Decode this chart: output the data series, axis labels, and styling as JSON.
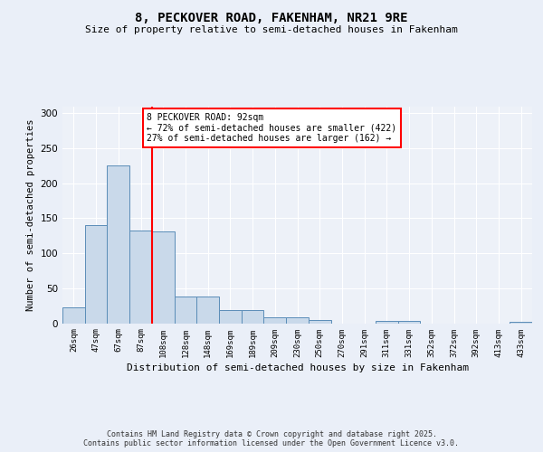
{
  "title1": "8, PECKOVER ROAD, FAKENHAM, NR21 9RE",
  "title2": "Size of property relative to semi-detached houses in Fakenham",
  "xlabel": "Distribution of semi-detached houses by size in Fakenham",
  "ylabel": "Number of semi-detached properties",
  "bar_labels": [
    "26sqm",
    "47sqm",
    "67sqm",
    "87sqm",
    "108sqm",
    "128sqm",
    "148sqm",
    "169sqm",
    "189sqm",
    "209sqm",
    "230sqm",
    "250sqm",
    "270sqm",
    "291sqm",
    "311sqm",
    "331sqm",
    "352sqm",
    "372sqm",
    "392sqm",
    "413sqm",
    "433sqm"
  ],
  "bar_values": [
    22,
    140,
    225,
    133,
    131,
    38,
    38,
    19,
    19,
    8,
    8,
    4,
    0,
    0,
    3,
    3,
    0,
    0,
    0,
    0,
    2
  ],
  "bar_color": "#c9d9ea",
  "bar_edge_color": "#5b8db8",
  "vline_x_index": 3,
  "vline_color": "red",
  "annotation_title": "8 PECKOVER ROAD: 92sqm",
  "annotation_line1": "← 72% of semi-detached houses are smaller (422)",
  "annotation_line2": "27% of semi-detached houses are larger (162) →",
  "annotation_box_color": "white",
  "annotation_box_edge": "red",
  "ylim": [
    0,
    310
  ],
  "yticks": [
    0,
    50,
    100,
    150,
    200,
    250,
    300
  ],
  "footer1": "Contains HM Land Registry data © Crown copyright and database right 2025.",
  "footer2": "Contains public sector information licensed under the Open Government Licence v3.0.",
  "bg_color": "#eaeff8",
  "plot_bg_color": "#edf1f8"
}
